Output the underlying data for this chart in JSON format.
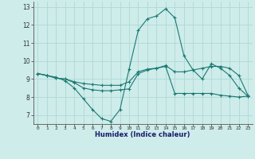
{
  "xlabel": "Humidex (Indice chaleur)",
  "bg_color": "#ceecea",
  "grid_color": "#aed8d5",
  "line_color": "#1a7a72",
  "x_values": [
    0,
    1,
    2,
    3,
    4,
    5,
    6,
    7,
    8,
    9,
    10,
    11,
    12,
    13,
    14,
    15,
    16,
    17,
    18,
    19,
    20,
    21,
    22,
    23
  ],
  "series1": [
    9.3,
    9.2,
    9.1,
    8.9,
    8.5,
    7.9,
    7.3,
    6.8,
    6.65,
    7.3,
    9.55,
    11.7,
    12.35,
    12.5,
    12.9,
    12.4,
    10.3,
    9.5,
    9.0,
    9.85,
    9.6,
    9.2,
    8.5,
    8.05
  ],
  "series2": [
    9.3,
    9.2,
    9.05,
    9.0,
    8.8,
    8.5,
    8.4,
    8.35,
    8.35,
    8.4,
    8.45,
    9.3,
    9.5,
    9.6,
    9.7,
    8.2,
    8.2,
    8.2,
    8.2,
    8.2,
    8.1,
    8.05,
    8.0,
    8.05
  ],
  "series3": [
    9.3,
    9.2,
    9.05,
    9.0,
    8.85,
    8.75,
    8.7,
    8.65,
    8.65,
    8.65,
    8.85,
    9.4,
    9.55,
    9.6,
    9.75,
    9.4,
    9.4,
    9.5,
    9.6,
    9.7,
    9.7,
    9.6,
    9.2,
    8.1
  ],
  "ylim": [
    6.5,
    13.3
  ],
  "yticks": [
    7,
    8,
    9,
    10,
    11,
    12,
    13
  ],
  "xlim": [
    -0.5,
    23.5
  ]
}
